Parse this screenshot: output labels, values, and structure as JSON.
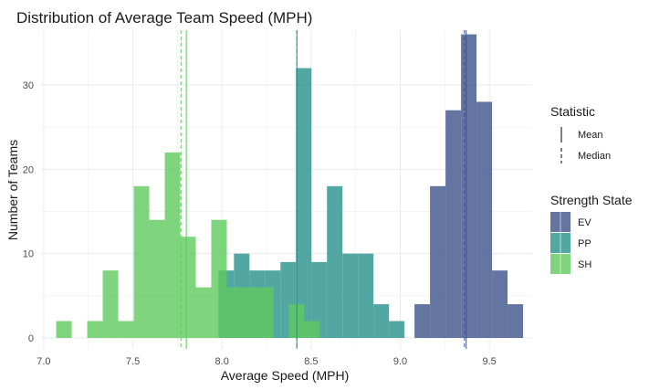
{
  "chart_data": {
    "type": "histogram",
    "title": "Distribution of Average Team Speed (MPH)",
    "xlabel": "Average Speed (MPH)",
    "ylabel": "Number of Teams",
    "xlim": [
      6.98,
      9.74
    ],
    "ylim": [
      -1.3,
      36.5
    ],
    "x_ticks": [
      7.0,
      7.5,
      8.0,
      8.5,
      9.0,
      9.5
    ],
    "x_tick_labels": [
      "7.0",
      "7.5",
      "8.0",
      "8.5",
      "9.0",
      "9.5"
    ],
    "y_ticks": [
      0,
      10,
      20,
      30
    ],
    "y_tick_labels": [
      "0",
      "10",
      "20",
      "30"
    ],
    "grid": true,
    "bin_width": 0.087,
    "legend_position": "right",
    "series": [
      {
        "name": "EV",
        "color": "#3F538A",
        "bin_starts": [
          9.08,
          9.167,
          9.254,
          9.341,
          9.428,
          9.515,
          9.602
        ],
        "counts": [
          4,
          18,
          27,
          36,
          28,
          8,
          4
        ]
      },
      {
        "name": "PP",
        "color": "#27918C",
        "bin_starts": [
          7.98,
          8.067,
          8.154,
          8.241,
          8.328,
          8.415,
          8.502,
          8.589,
          8.676,
          8.763,
          8.85,
          8.937
        ],
        "counts": [
          8,
          10,
          8,
          8,
          9,
          32,
          9,
          18,
          10,
          10,
          4,
          2
        ]
      },
      {
        "name": "SH",
        "color": "#5FC95E",
        "bin_starts": [
          7.07,
          7.157,
          7.244,
          7.331,
          7.418,
          7.505,
          7.592,
          7.679,
          7.766,
          7.853,
          7.94,
          8.027,
          8.114,
          8.201,
          8.288,
          8.375,
          8.462
        ],
        "counts": [
          2,
          0,
          2,
          8,
          2,
          18,
          14,
          22,
          12,
          6,
          14,
          6,
          6,
          6,
          0,
          4,
          2
        ]
      }
    ],
    "reference_lines": [
      {
        "series": "SH",
        "statistic": "Mean",
        "x": 7.8
      },
      {
        "series": "SH",
        "statistic": "Median",
        "x": 7.77
      },
      {
        "series": "PP",
        "statistic": "Mean",
        "x": 8.42
      },
      {
        "series": "PP",
        "statistic": "Median",
        "x": 8.42
      },
      {
        "series": "EV",
        "statistic": "Mean",
        "x": 9.37
      },
      {
        "series": "EV",
        "statistic": "Median",
        "x": 9.36
      }
    ],
    "legends": {
      "statistic_title": "Statistic",
      "statistic_items": [
        "Mean",
        "Median"
      ],
      "strength_title": "Strength State",
      "strength_items": [
        "EV",
        "PP",
        "SH"
      ]
    }
  },
  "style": {
    "panel_background": "#ffffff",
    "grid_color": "#ebebeb",
    "bar_opacity": 0.8
  }
}
